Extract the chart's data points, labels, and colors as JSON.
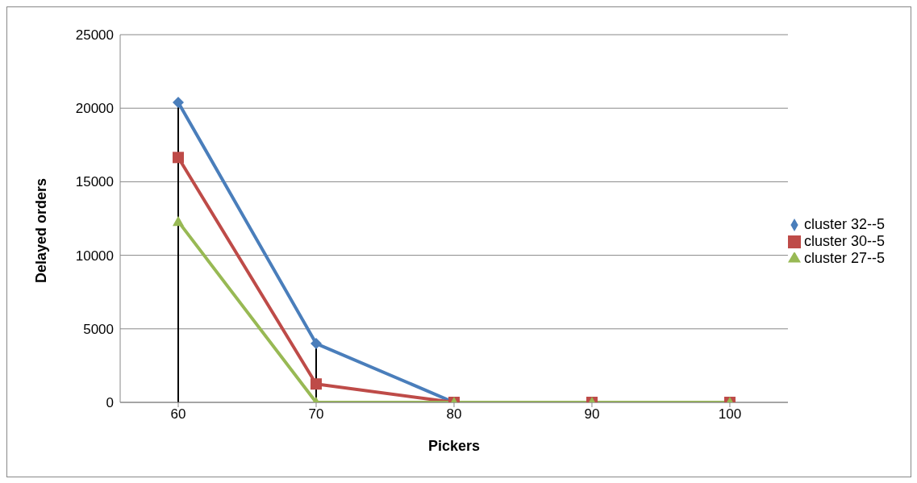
{
  "chart_data": {
    "type": "line",
    "xlabel": "Pickers",
    "ylabel": "Delayed orders",
    "categories": [
      "60",
      "70",
      "80",
      "90",
      "100"
    ],
    "series": [
      {
        "name": "cluster 32--5",
        "color": "#4a7ebb",
        "marker": "diamond",
        "values": [
          20400,
          4000,
          0,
          0,
          0
        ],
        "errors": [
          [
            0,
            20400
          ],
          [
            0,
            4000
          ],
          null,
          null,
          null
        ]
      },
      {
        "name": "cluster 30--5",
        "color": "#be4b48",
        "marker": "square",
        "values": [
          16650,
          1250,
          0,
          0,
          0
        ]
      },
      {
        "name": "cluster 27--5",
        "color": "#98b954",
        "marker": "triangle",
        "values": [
          12300,
          0,
          0,
          0,
          0
        ]
      }
    ],
    "ylim": [
      0,
      25000
    ],
    "yticks": [
      0,
      5000,
      10000,
      15000,
      20000,
      25000
    ],
    "grid": "y",
    "legend": "right"
  }
}
